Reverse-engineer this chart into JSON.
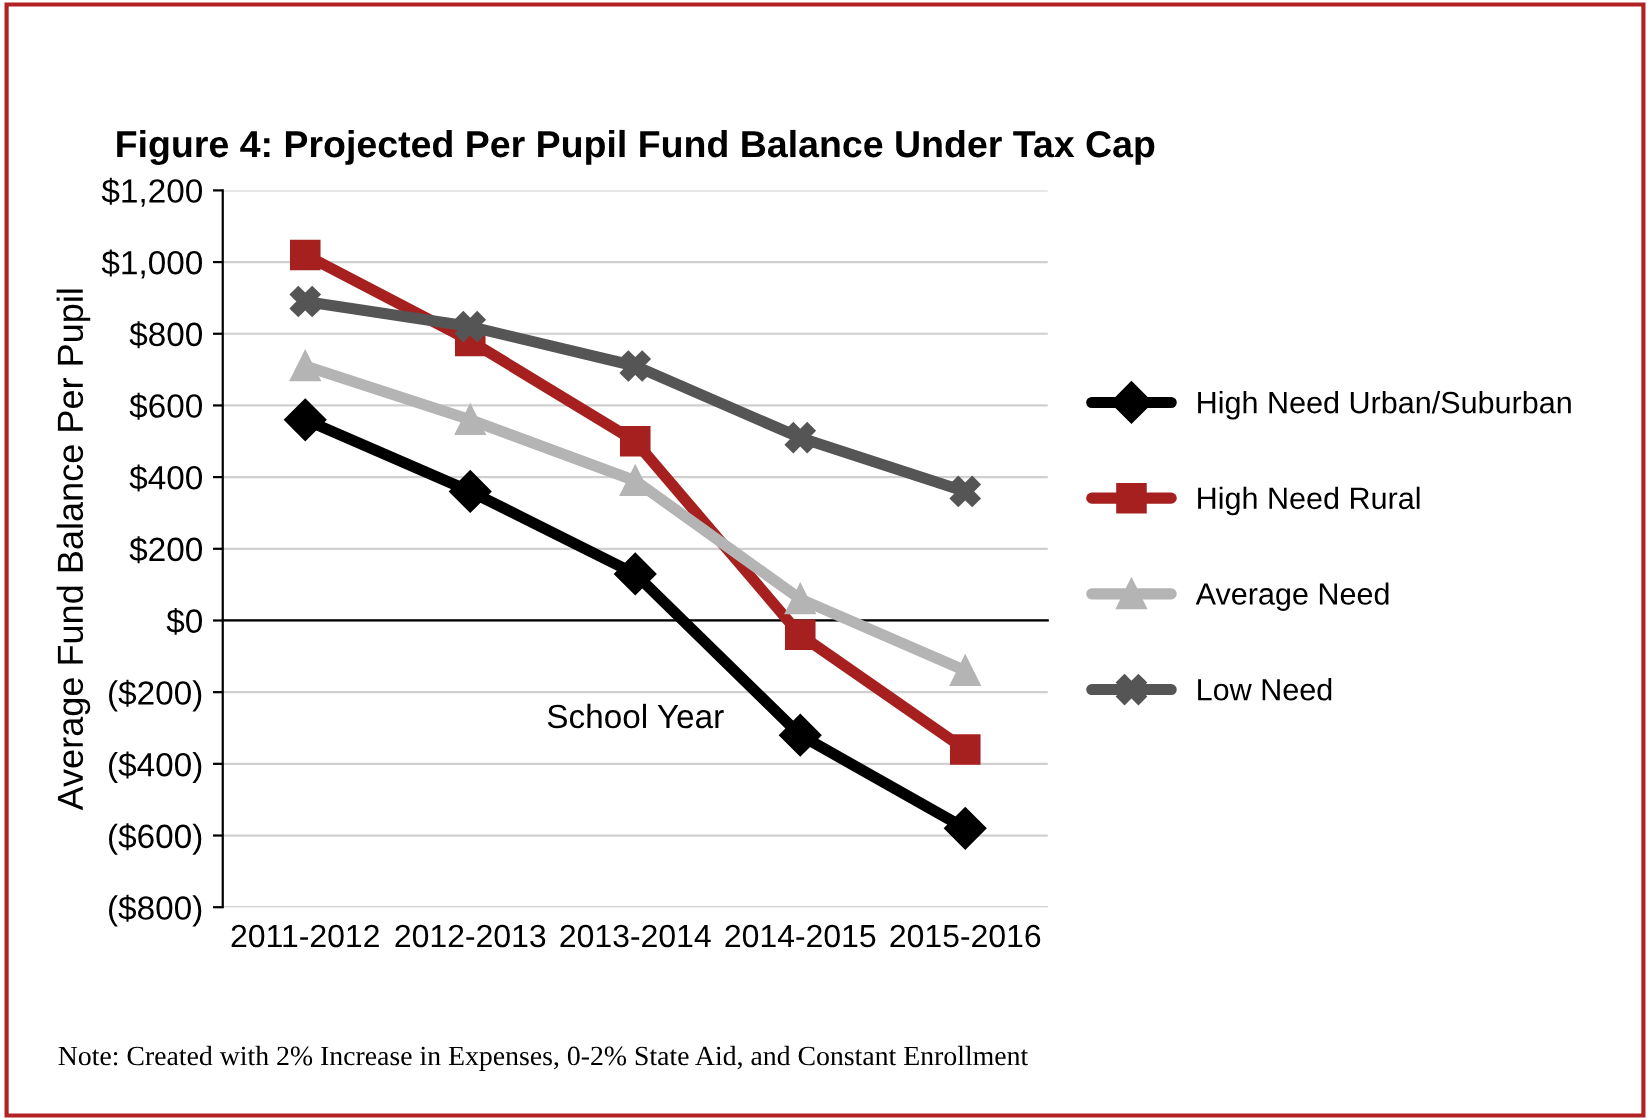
{
  "chart_data": {
    "type": "line",
    "title": "Figure 4: Projected Per Pupil Fund Balance Under Tax Cap",
    "xlabel": "School Year",
    "ylabel": "Average Fund Balance Per Pupil",
    "categories": [
      "2011-2012",
      "2012-2013",
      "2013-2014",
      "2014-2015",
      "2015-2016"
    ],
    "series": [
      {
        "name": "High Need Urban/Suburban",
        "color": "#000000",
        "marker": "diamond",
        "values": [
          560,
          360,
          130,
          -320,
          -580
        ]
      },
      {
        "name": "High Need Rural",
        "color": "#a6201f",
        "marker": "square",
        "values": [
          1020,
          780,
          500,
          -40,
          -360
        ]
      },
      {
        "name": "Average Need",
        "color": "#b4b4b4",
        "marker": "triangle",
        "values": [
          710,
          560,
          390,
          60,
          -140
        ]
      },
      {
        "name": "Low Need",
        "color": "#555555",
        "marker": "cross",
        "values": [
          890,
          820,
          710,
          510,
          360
        ]
      }
    ],
    "ylim": [
      -800,
      1200
    ],
    "yticks": [
      {
        "value": -800,
        "label": "($800)"
      },
      {
        "value": -600,
        "label": "($600)"
      },
      {
        "value": -400,
        "label": "($400)"
      },
      {
        "value": -200,
        "label": "($200)"
      },
      {
        "value": 0,
        "label": "$0"
      },
      {
        "value": 200,
        "label": "$200"
      },
      {
        "value": 400,
        "label": "$400"
      },
      {
        "value": 600,
        "label": "$600"
      },
      {
        "value": 800,
        "label": "$800"
      },
      {
        "value": 1000,
        "label": "$1,000"
      },
      {
        "value": 1200,
        "label": "$1,200"
      }
    ],
    "grid": "y",
    "legend": "right",
    "line_style": "solid",
    "annotations": [
      "Note: Created with 2% Increase in Expenses, 0-2% State Aid, and Constant Enrollment"
    ]
  }
}
